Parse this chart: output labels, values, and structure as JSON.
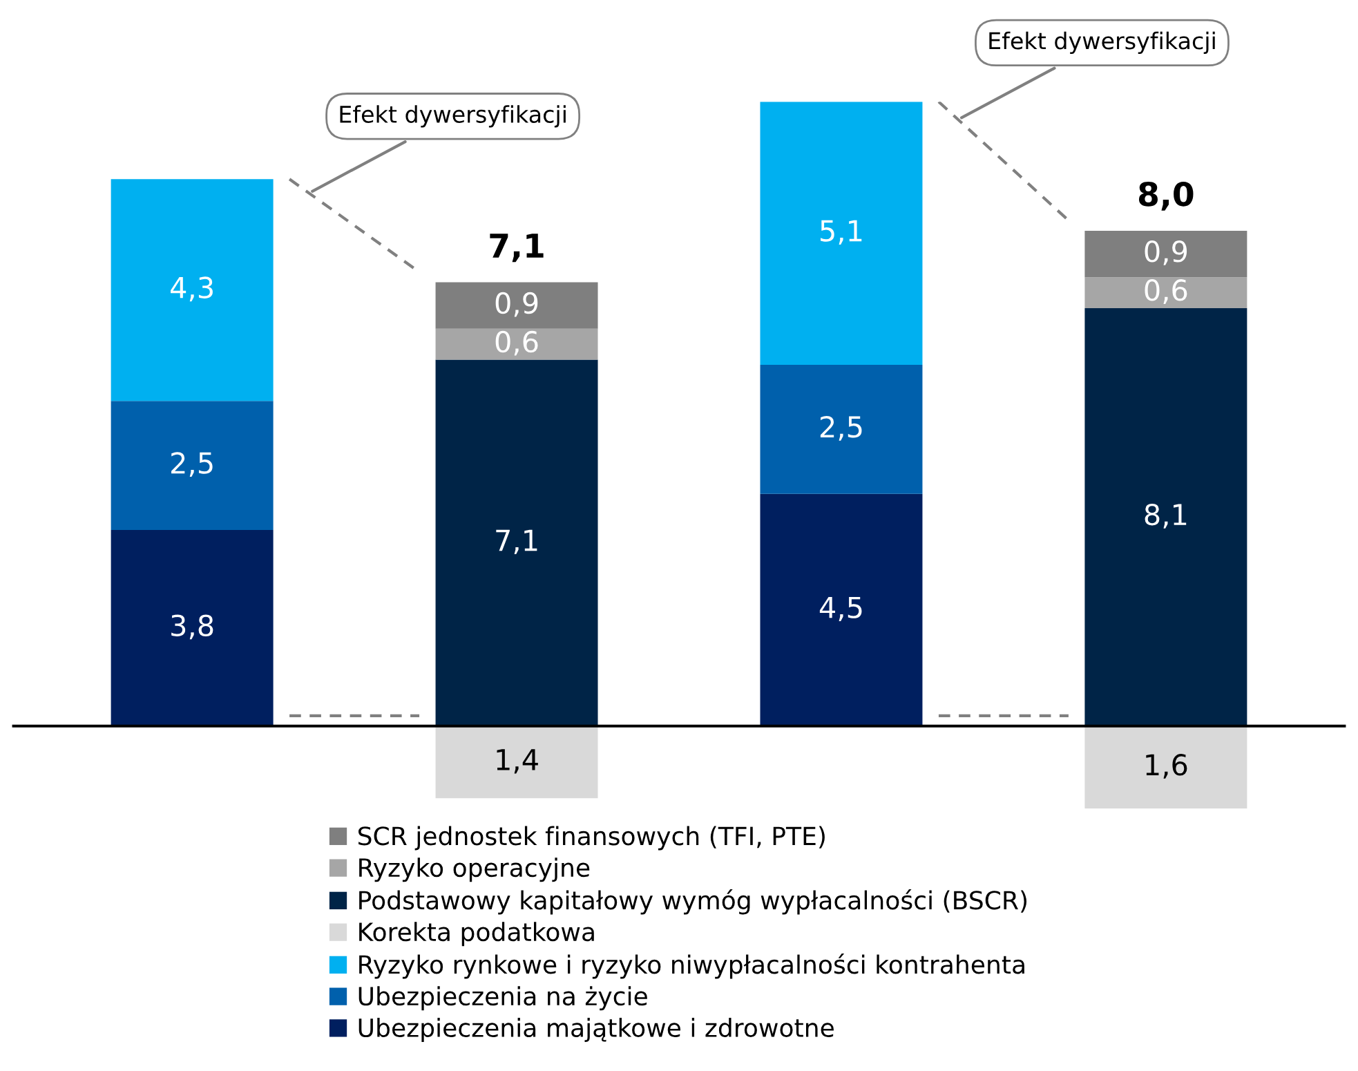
{
  "chart_data": {
    "type": "bar",
    "stacked": true,
    "categories": [
      null,
      null,
      null,
      null
    ],
    "tick_labels": false,
    "grid": false,
    "legend": "bottom",
    "series": [
      {
        "name": "Ubezpieczenia majątkowe i zdrowotne",
        "color": "#001f5f",
        "values": [
          3.8,
          null,
          4.5,
          null
        ],
        "value_labels": [
          "3,8",
          null,
          "4,5",
          null
        ]
      },
      {
        "name": "Ubezpieczenia na życie",
        "color": "#0060ac",
        "values": [
          2.5,
          null,
          2.5,
          null
        ],
        "value_labels": [
          "2,5",
          null,
          "2,5",
          null
        ]
      },
      {
        "name": "Ryzyko rynkowe i ryzyko niwypłacalności kontrahenta",
        "color": "#00b0f0",
        "values": [
          4.3,
          null,
          5.1,
          null
        ],
        "value_labels": [
          "4,3",
          null,
          "5,1",
          null
        ]
      },
      {
        "name": "Korekta podatkowa",
        "color": "#d9d9d9",
        "values": [
          null,
          -1.4,
          null,
          -1.6
        ]
      },
      {
        "name": "Podstawowy kapitałowy wymóg wypłacalności (BSCR)",
        "color": "#002447",
        "values": [
          null,
          7.1,
          null,
          8.1
        ],
        "value_labels": [
          null,
          "7,1",
          null,
          "8,1"
        ]
      },
      {
        "name": "Ryzyko operacyjne",
        "color": "#a6a6a6",
        "values": [
          null,
          0.6,
          null,
          0.6
        ],
        "value_labels": [
          null,
          "0,6",
          null,
          "0,6"
        ]
      },
      {
        "name": "SCR jednostek finansowych (TFI, PTE)",
        "color": "#7f7f7f",
        "values": [
          null,
          0.9,
          null,
          0.9
        ],
        "value_labels": [
          null,
          "0,9",
          null,
          "0,9"
        ]
      }
    ],
    "annotations": [
      "Efekt dywersyfikacji",
      "7,1",
      "1,4",
      "Efekt dywersyfikacji",
      "8,0",
      "1,6"
    ]
  }
}
